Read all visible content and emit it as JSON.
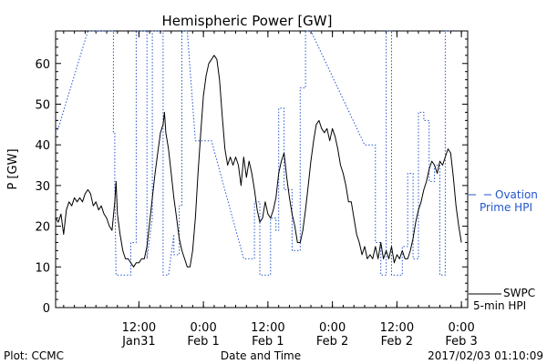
{
  "chart_data": {
    "type": "line",
    "title": "Hemispheric Power [GW]",
    "ylabel": "P [GW]",
    "xlabel": "Date and Time",
    "ylim": [
      0,
      68
    ],
    "xlim": [
      "2017-01-30T20:30",
      "2017-02-03T01:10"
    ],
    "y_ticks": [
      0,
      10,
      20,
      30,
      40,
      50,
      60
    ],
    "x_ticks": [
      {
        "t": "2017-01-31T12:00",
        "time": "12:00",
        "date": "Jan31"
      },
      {
        "t": "2017-02-01T00:00",
        "time": "0:00",
        "date": "Feb 1"
      },
      {
        "t": "2017-02-01T12:00",
        "time": "12:00",
        "date": "Feb 1"
      },
      {
        "t": "2017-02-02T00:00",
        "time": "0:00",
        "date": "Feb 2"
      },
      {
        "t": "2017-02-02T12:00",
        "time": "12:00",
        "date": "Feb 2"
      },
      {
        "t": "2017-02-03T00:00",
        "time": "0:00",
        "date": "Feb 3"
      }
    ],
    "grid": false,
    "series": [
      {
        "name": "SWPC 5-min HPI",
        "color": "#000000",
        "style": "solid",
        "points": [
          [
            "2017-01-30T20:30",
            22
          ],
          [
            "2017-01-30T21:00",
            21
          ],
          [
            "2017-01-30T21:30",
            23
          ],
          [
            "2017-01-30T22:00",
            18
          ],
          [
            "2017-01-30T22:30",
            24
          ],
          [
            "2017-01-30T23:00",
            26
          ],
          [
            "2017-01-30T23:30",
            25
          ],
          [
            "2017-01-31T00:00",
            27
          ],
          [
            "2017-01-31T00:30",
            26
          ],
          [
            "2017-01-31T01:00",
            27
          ],
          [
            "2017-01-31T01:30",
            26
          ],
          [
            "2017-01-31T02:00",
            28
          ],
          [
            "2017-01-31T02:30",
            29
          ],
          [
            "2017-01-31T03:00",
            28
          ],
          [
            "2017-01-31T03:30",
            25
          ],
          [
            "2017-01-31T04:00",
            26
          ],
          [
            "2017-01-31T04:30",
            24
          ],
          [
            "2017-01-31T05:00",
            25
          ],
          [
            "2017-01-31T05:30",
            23
          ],
          [
            "2017-01-31T06:00",
            22
          ],
          [
            "2017-01-31T06:30",
            20
          ],
          [
            "2017-01-31T07:00",
            19
          ],
          [
            "2017-01-31T07:30",
            26
          ],
          [
            "2017-01-31T07:45",
            31
          ],
          [
            "2017-01-31T08:00",
            23
          ],
          [
            "2017-01-31T08:30",
            18
          ],
          [
            "2017-01-31T09:00",
            14
          ],
          [
            "2017-01-31T09:30",
            12
          ],
          [
            "2017-01-31T10:00",
            12
          ],
          [
            "2017-01-31T10:30",
            11
          ],
          [
            "2017-01-31T11:00",
            10
          ],
          [
            "2017-01-31T11:30",
            11
          ],
          [
            "2017-01-31T12:00",
            11
          ],
          [
            "2017-01-31T12:30",
            12
          ],
          [
            "2017-01-31T13:00",
            12
          ],
          [
            "2017-01-31T13:30",
            15
          ],
          [
            "2017-01-31T14:00",
            21
          ],
          [
            "2017-01-31T14:30",
            27
          ],
          [
            "2017-01-31T15:00",
            33
          ],
          [
            "2017-01-31T15:30",
            38
          ],
          [
            "2017-01-31T16:00",
            43
          ],
          [
            "2017-01-31T16:30",
            45
          ],
          [
            "2017-01-31T16:45",
            48
          ],
          [
            "2017-01-31T17:00",
            43
          ],
          [
            "2017-01-31T17:30",
            39
          ],
          [
            "2017-01-31T18:00",
            33
          ],
          [
            "2017-01-31T18:30",
            27
          ],
          [
            "2017-01-31T19:00",
            22
          ],
          [
            "2017-01-31T19:30",
            17
          ],
          [
            "2017-01-31T20:00",
            14
          ],
          [
            "2017-01-31T20:30",
            12
          ],
          [
            "2017-01-31T21:00",
            10
          ],
          [
            "2017-01-31T21:30",
            10
          ],
          [
            "2017-01-31T22:00",
            14
          ],
          [
            "2017-01-31T22:30",
            22
          ],
          [
            "2017-01-31T23:00",
            33
          ],
          [
            "2017-01-31T23:30",
            43
          ],
          [
            "2017-02-01T00:00",
            52
          ],
          [
            "2017-02-01T00:30",
            57
          ],
          [
            "2017-02-01T01:00",
            60
          ],
          [
            "2017-02-01T01:30",
            61
          ],
          [
            "2017-02-01T02:00",
            62
          ],
          [
            "2017-02-01T02:30",
            61
          ],
          [
            "2017-02-01T03:00",
            56
          ],
          [
            "2017-02-01T03:30",
            47
          ],
          [
            "2017-02-01T04:00",
            39
          ],
          [
            "2017-02-01T04:30",
            35
          ],
          [
            "2017-02-01T05:00",
            37
          ],
          [
            "2017-02-01T05:30",
            35
          ],
          [
            "2017-02-01T06:00",
            37
          ],
          [
            "2017-02-01T06:30",
            35
          ],
          [
            "2017-02-01T07:00",
            30
          ],
          [
            "2017-02-01T07:30",
            37
          ],
          [
            "2017-02-01T08:00",
            32
          ],
          [
            "2017-02-01T08:30",
            36
          ],
          [
            "2017-02-01T09:00",
            33
          ],
          [
            "2017-02-01T09:30",
            29
          ],
          [
            "2017-02-01T10:00",
            24
          ],
          [
            "2017-02-01T10:30",
            21
          ],
          [
            "2017-02-01T11:00",
            22
          ],
          [
            "2017-02-01T11:30",
            26
          ],
          [
            "2017-02-01T12:00",
            23
          ],
          [
            "2017-02-01T12:30",
            22
          ],
          [
            "2017-02-01T13:00",
            24
          ],
          [
            "2017-02-01T13:30",
            27
          ],
          [
            "2017-02-01T14:00",
            33
          ],
          [
            "2017-02-01T14:30",
            36
          ],
          [
            "2017-02-01T15:00",
            38
          ],
          [
            "2017-02-01T15:30",
            32
          ],
          [
            "2017-02-01T16:00",
            27
          ],
          [
            "2017-02-01T16:30",
            23
          ],
          [
            "2017-02-01T17:00",
            20
          ],
          [
            "2017-02-01T17:30",
            16
          ],
          [
            "2017-02-01T18:00",
            16
          ],
          [
            "2017-02-01T18:30",
            19
          ],
          [
            "2017-02-01T19:00",
            24
          ],
          [
            "2017-02-01T19:30",
            30
          ],
          [
            "2017-02-01T20:00",
            36
          ],
          [
            "2017-02-01T20:30",
            41
          ],
          [
            "2017-02-01T21:00",
            45
          ],
          [
            "2017-02-01T21:30",
            46
          ],
          [
            "2017-02-01T22:00",
            44
          ],
          [
            "2017-02-01T22:30",
            43
          ],
          [
            "2017-02-01T23:00",
            44
          ],
          [
            "2017-02-01T23:30",
            41
          ],
          [
            "2017-02-02T00:00",
            44
          ],
          [
            "2017-02-02T00:30",
            42
          ],
          [
            "2017-02-02T01:00",
            39
          ],
          [
            "2017-02-02T01:30",
            35
          ],
          [
            "2017-02-02T02:00",
            33
          ],
          [
            "2017-02-02T02:30",
            30
          ],
          [
            "2017-02-02T03:00",
            26
          ],
          [
            "2017-02-02T03:30",
            26
          ],
          [
            "2017-02-02T04:00",
            22
          ],
          [
            "2017-02-02T04:30",
            18
          ],
          [
            "2017-02-02T05:00",
            16
          ],
          [
            "2017-02-02T05:30",
            13
          ],
          [
            "2017-02-02T06:00",
            15
          ],
          [
            "2017-02-02T06:30",
            12
          ],
          [
            "2017-02-02T07:00",
            13
          ],
          [
            "2017-02-02T07:30",
            12
          ],
          [
            "2017-02-02T08:00",
            15
          ],
          [
            "2017-02-02T08:30",
            12
          ],
          [
            "2017-02-02T09:00",
            16
          ],
          [
            "2017-02-02T09:30",
            12
          ],
          [
            "2017-02-02T10:00",
            14
          ],
          [
            "2017-02-02T10:30",
            12
          ],
          [
            "2017-02-02T11:00",
            15
          ],
          [
            "2017-02-02T11:30",
            11
          ],
          [
            "2017-02-02T12:00",
            13
          ],
          [
            "2017-02-02T12:30",
            12
          ],
          [
            "2017-02-02T13:00",
            14
          ],
          [
            "2017-02-02T13:30",
            12
          ],
          [
            "2017-02-02T14:00",
            12
          ],
          [
            "2017-02-02T14:30",
            14
          ],
          [
            "2017-02-02T15:00",
            17
          ],
          [
            "2017-02-02T15:30",
            21
          ],
          [
            "2017-02-02T16:00",
            24
          ],
          [
            "2017-02-02T16:30",
            26
          ],
          [
            "2017-02-02T17:00",
            29
          ],
          [
            "2017-02-02T17:30",
            31
          ],
          [
            "2017-02-02T18:00",
            34
          ],
          [
            "2017-02-02T18:30",
            36
          ],
          [
            "2017-02-02T19:00",
            35
          ],
          [
            "2017-02-02T19:30",
            33
          ],
          [
            "2017-02-02T20:00",
            36
          ],
          [
            "2017-02-02T20:30",
            35
          ],
          [
            "2017-02-02T21:00",
            37
          ],
          [
            "2017-02-02T21:30",
            39
          ],
          [
            "2017-02-02T22:00",
            38
          ],
          [
            "2017-02-02T22:30",
            32
          ],
          [
            "2017-02-02T23:00",
            25
          ],
          [
            "2017-02-02T23:30",
            20
          ],
          [
            "2017-02-03T00:00",
            16
          ]
        ]
      },
      {
        "name": "Ovation Prime HPI",
        "color": "#2255cc",
        "style": "dotted",
        "points": [
          [
            "2017-01-30T20:30",
            43
          ],
          [
            "2017-01-30T21:00",
            44
          ],
          [
            "2017-01-31T02:30",
            68
          ],
          [
            "2017-01-31T07:15",
            68
          ],
          [
            "2017-01-31T07:15",
            43
          ],
          [
            "2017-01-31T07:30",
            43
          ],
          [
            "2017-01-31T07:30",
            30
          ],
          [
            "2017-01-31T07:45",
            8
          ],
          [
            "2017-01-31T10:30",
            8
          ],
          [
            "2017-01-31T10:30",
            16
          ],
          [
            "2017-01-31T11:30",
            16
          ],
          [
            "2017-01-31T11:30",
            68
          ],
          [
            "2017-01-31T13:30",
            68
          ],
          [
            "2017-01-31T13:30",
            12
          ],
          [
            "2017-01-31T14:30",
            22
          ],
          [
            "2017-01-31T14:30",
            68
          ],
          [
            "2017-01-31T16:30",
            68
          ],
          [
            "2017-01-31T16:30",
            8
          ],
          [
            "2017-01-31T17:30",
            8
          ],
          [
            "2017-01-31T18:30",
            18
          ],
          [
            "2017-01-31T18:30",
            13
          ],
          [
            "2017-01-31T19:30",
            13
          ],
          [
            "2017-01-31T19:30",
            25
          ],
          [
            "2017-01-31T20:00",
            25
          ],
          [
            "2017-01-31T20:00",
            68
          ],
          [
            "2017-01-31T21:00",
            68
          ],
          [
            "2017-01-31T21:00",
            68
          ],
          [
            "2017-01-31T22:30",
            41
          ],
          [
            "2017-02-01T01:30",
            41
          ],
          [
            "2017-02-01T07:30",
            12
          ],
          [
            "2017-02-01T09:30",
            12
          ],
          [
            "2017-02-01T09:30",
            26
          ],
          [
            "2017-02-01T10:30",
            26
          ],
          [
            "2017-02-01T10:30",
            8
          ],
          [
            "2017-02-01T12:30",
            8
          ],
          [
            "2017-02-01T12:30",
            22
          ],
          [
            "2017-02-01T13:30",
            22
          ],
          [
            "2017-02-01T13:30",
            19
          ],
          [
            "2017-02-01T14:00",
            19
          ],
          [
            "2017-02-01T14:00",
            49
          ],
          [
            "2017-02-01T15:00",
            49
          ],
          [
            "2017-02-01T15:00",
            29
          ],
          [
            "2017-02-01T16:30",
            29
          ],
          [
            "2017-02-01T16:30",
            14
          ],
          [
            "2017-02-01T18:00",
            14
          ],
          [
            "2017-02-01T18:00",
            54
          ],
          [
            "2017-02-01T19:00",
            54
          ],
          [
            "2017-02-01T19:00",
            68
          ],
          [
            "2017-02-01T20:00",
            68
          ],
          [
            "2017-02-02T06:00",
            40
          ],
          [
            "2017-02-02T08:00",
            40
          ],
          [
            "2017-02-02T08:00",
            16
          ],
          [
            "2017-02-02T09:00",
            16
          ],
          [
            "2017-02-02T09:00",
            8
          ],
          [
            "2017-02-02T10:00",
            8
          ],
          [
            "2017-02-02T10:00",
            68
          ],
          [
            "2017-02-02T11:00",
            68
          ],
          [
            "2017-02-02T11:00",
            8
          ],
          [
            "2017-02-02T13:00",
            8
          ],
          [
            "2017-02-02T13:00",
            15
          ],
          [
            "2017-02-02T14:00",
            15
          ],
          [
            "2017-02-02T14:00",
            33
          ],
          [
            "2017-02-02T15:00",
            33
          ],
          [
            "2017-02-02T15:00",
            12
          ],
          [
            "2017-02-02T16:00",
            12
          ],
          [
            "2017-02-02T16:00",
            48
          ],
          [
            "2017-02-02T17:00",
            48
          ],
          [
            "2017-02-02T17:00",
            46
          ],
          [
            "2017-02-02T18:00",
            46
          ],
          [
            "2017-02-02T18:00",
            31
          ],
          [
            "2017-02-02T19:00",
            31
          ],
          [
            "2017-02-02T19:00",
            35
          ],
          [
            "2017-02-02T20:00",
            35
          ],
          [
            "2017-02-02T20:00",
            8
          ],
          [
            "2017-02-02T21:00",
            8
          ],
          [
            "2017-02-02T21:00",
            68
          ],
          [
            "2017-02-02T22:00",
            68
          ]
        ]
      }
    ],
    "legend": [
      {
        "color": "#2255cc",
        "lines": [
          "Ovation",
          "Prime HPI"
        ]
      },
      {
        "color": "#000000",
        "lines": [
          "SWPC",
          "5-min HPI"
        ]
      }
    ],
    "legend_position": "right"
  },
  "footer": {
    "left": "Plot: CCMC",
    "right": "2017/02/03 01:10:09"
  }
}
